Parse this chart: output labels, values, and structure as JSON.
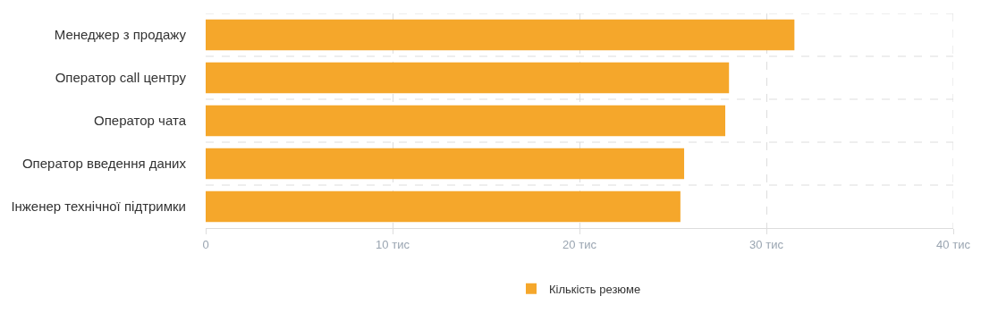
{
  "chart_data": {
    "type": "bar",
    "orientation": "horizontal",
    "categories": [
      "Менеджер з продажу",
      "Оператор call центру",
      "Оператор чата",
      "Оператор введення даних",
      "Інженер технічної підтримки"
    ],
    "series": [
      {
        "name": "Кількість резюме",
        "color": "#f5a72b",
        "values": [
          31.5,
          28.0,
          27.8,
          25.6,
          25.4
        ]
      }
    ],
    "xlim": [
      0,
      40
    ],
    "xticks": [
      0,
      {
        "value": 10,
        "label": "10 тис"
      },
      {
        "value": 20,
        "label": "20 тис"
      },
      {
        "value": 30,
        "label": "30 тис"
      },
      {
        "value": 40,
        "label": "40 тис"
      }
    ],
    "grid": true,
    "legend": "bottom"
  }
}
